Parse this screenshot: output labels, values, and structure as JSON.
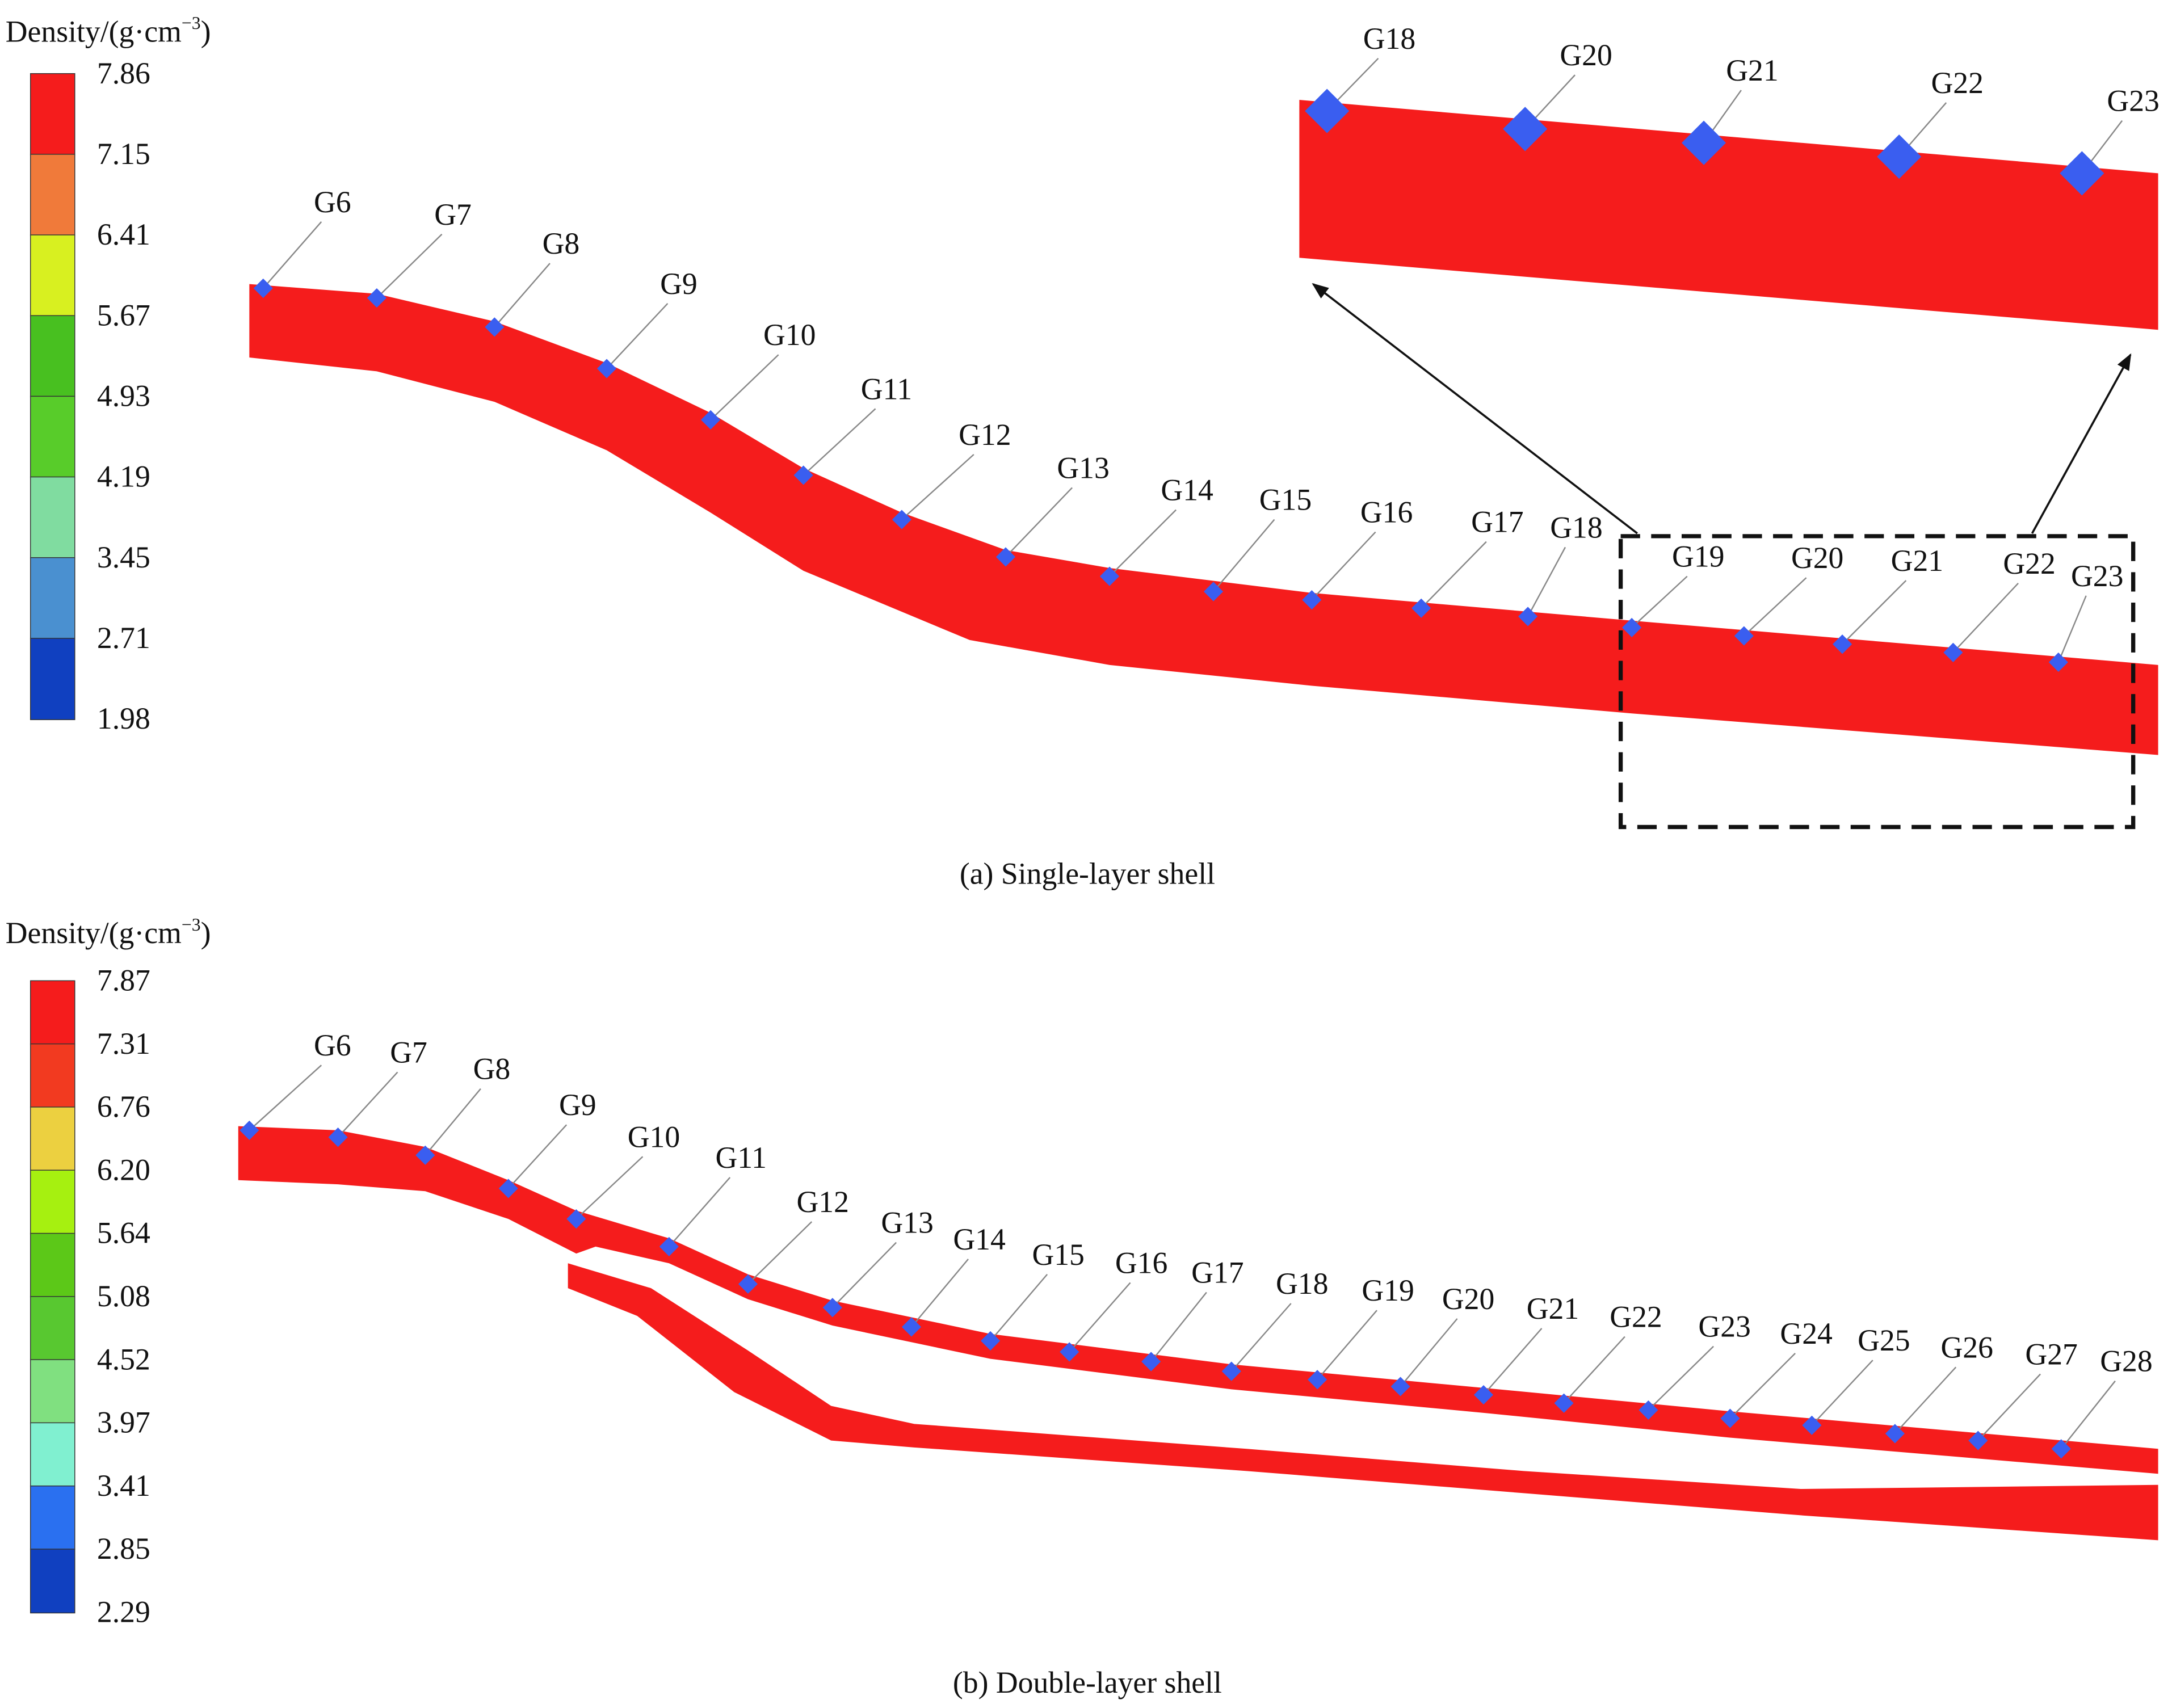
{
  "panels": [
    {
      "legend_title": {
        "text": "Density/(g·cm",
        "sup": "−3",
        "end": ")"
      },
      "legend_labels": [
        "7.86",
        "7.15",
        "6.41",
        "5.67",
        "4.93",
        "4.19",
        "3.45",
        "2.71",
        "1.98"
      ],
      "gauges": [
        "G6",
        "G7",
        "G8",
        "G9",
        "G10",
        "G11",
        "G12",
        "G13",
        "G14",
        "G15",
        "G16",
        "G17",
        "G18",
        "G19",
        "G20",
        "G21",
        "G22",
        "G23"
      ],
      "inset_gauges": [
        "G18",
        "G20",
        "G21",
        "G22",
        "G23"
      ],
      "caption": "(a) Single-layer shell"
    },
    {
      "legend_title": {
        "text": "Density/(g·cm",
        "sup": "−3",
        "end": ")"
      },
      "legend_labels": [
        "7.87",
        "7.31",
        "6.76",
        "6.20",
        "5.64",
        "5.08",
        "4.52",
        "3.97",
        "3.41",
        "2.85",
        "2.29"
      ],
      "gauges": [
        "G6",
        "G7",
        "G8",
        "G9",
        "G10",
        "G11",
        "G12",
        "G13",
        "G14",
        "G15",
        "G16",
        "G17",
        "G18",
        "G19",
        "G20",
        "G21",
        "G22",
        "G23",
        "G24",
        "G25",
        "G26",
        "G27",
        "G28"
      ],
      "caption": "(b) Double-layer shell"
    }
  ]
}
